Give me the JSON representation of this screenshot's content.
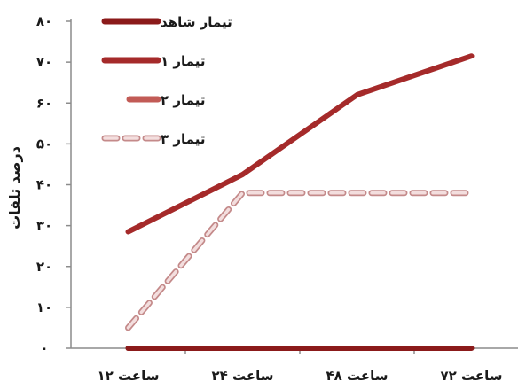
{
  "chart_data": {
    "type": "line",
    "x_categories": [
      "۱۲ ساعت",
      "۲۴ ساعت",
      "۴۸ ساعت",
      "۷۲ ساعت"
    ],
    "y_tick_labels": [
      "۰",
      "۱۰",
      "۲۰",
      "۳۰",
      "۴۰",
      "۵۰",
      "۶۰",
      "۷۰",
      "۸۰"
    ],
    "y_ticks": [
      0,
      10,
      20,
      30,
      40,
      50,
      60,
      70,
      80
    ],
    "ylabel": "درصد تلفات",
    "xlabel": "",
    "ylim": [
      0,
      80
    ],
    "grid": false,
    "legend_position": "top-left",
    "series": [
      {
        "name": "تیمار شاهد",
        "values": [
          0,
          0,
          0,
          0
        ],
        "color": "#8b1a1a",
        "style": "solid"
      },
      {
        "name": "تیمار ۱",
        "values": [
          28.5,
          42.5,
          62,
          71.5
        ],
        "color": "#a52a2a",
        "style": "solid"
      },
      {
        "name": "تیمار ۲",
        "values": [
          0,
          0,
          0,
          0
        ],
        "color": "#c25b56",
        "style": "dashed"
      },
      {
        "name": "تیمار ۳",
        "values": [
          5,
          38,
          38,
          38
        ],
        "color": "#d9a0a0",
        "style": "dashed"
      }
    ]
  }
}
